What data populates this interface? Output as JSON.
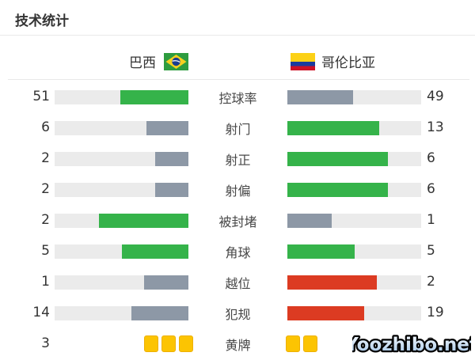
{
  "title": "技术统计",
  "teams": {
    "home": {
      "name": "巴西",
      "flag": "brazil-flag"
    },
    "away": {
      "name": "哥伦比亚",
      "flag": "colombia-flag"
    }
  },
  "watermark": "Yoozhibo.net",
  "colors": {
    "green": "#35b34a",
    "slate": "#8d98a6",
    "red": "#dc3b22",
    "track": "#ebebeb",
    "card": "#fcc402"
  },
  "rows": [
    {
      "label": "控球率",
      "left": {
        "value": "51",
        "color": "green",
        "pct": 51
      },
      "right": {
        "value": "49",
        "color": "slate",
        "pct": 49
      }
    },
    {
      "label": "射门",
      "left": {
        "value": "6",
        "color": "slate",
        "pct": 31.6
      },
      "right": {
        "value": "13",
        "color": "green",
        "pct": 68.4
      }
    },
    {
      "label": "射正",
      "left": {
        "value": "2",
        "color": "slate",
        "pct": 25
      },
      "right": {
        "value": "6",
        "color": "green",
        "pct": 75
      }
    },
    {
      "label": "射偏",
      "left": {
        "value": "2",
        "color": "slate",
        "pct": 25
      },
      "right": {
        "value": "6",
        "color": "green",
        "pct": 75
      }
    },
    {
      "label": "被封堵",
      "left": {
        "value": "2",
        "color": "green",
        "pct": 66.7
      },
      "right": {
        "value": "1",
        "color": "slate",
        "pct": 33.3
      }
    },
    {
      "label": "角球",
      "left": {
        "value": "5",
        "color": "green",
        "pct": 50
      },
      "right": {
        "value": "5",
        "color": "green",
        "pct": 50
      }
    },
    {
      "label": "越位",
      "left": {
        "value": "1",
        "color": "slate",
        "pct": 33.3
      },
      "right": {
        "value": "2",
        "color": "red",
        "pct": 66.7
      }
    },
    {
      "label": "犯规",
      "left": {
        "value": "14",
        "color": "slate",
        "pct": 42.4
      },
      "right": {
        "value": "19",
        "color": "red",
        "pct": 57.6
      }
    },
    {
      "label": "黄牌",
      "left": {
        "value": "3",
        "cards": 3
      },
      "right": {
        "value": "2",
        "cards": 2,
        "obscured_by_watermark": true
      }
    }
  ],
  "chart_data": {
    "type": "bar",
    "orientation": "horizontal-paired",
    "title": "技术统计",
    "categories": [
      "控球率",
      "射门",
      "射正",
      "射偏",
      "被封堵",
      "角球",
      "越位",
      "犯规",
      "黄牌"
    ],
    "series": [
      {
        "name": "巴西",
        "values": [
          51,
          6,
          2,
          2,
          2,
          5,
          1,
          14,
          3
        ]
      },
      {
        "name": "哥伦比亚",
        "values": [
          49,
          13,
          6,
          6,
          1,
          5,
          2,
          19,
          2
        ]
      }
    ],
    "bar_scale": "fill length = value / (home value + away value)",
    "color_rule": "higher side green (#35b34a), lower side slate (#8d98a6); 越位/犯规 higher side red (#dc3b22); ties both green; 黄牌 drawn as yellow card icons",
    "legend_position": "top",
    "grid": false
  }
}
